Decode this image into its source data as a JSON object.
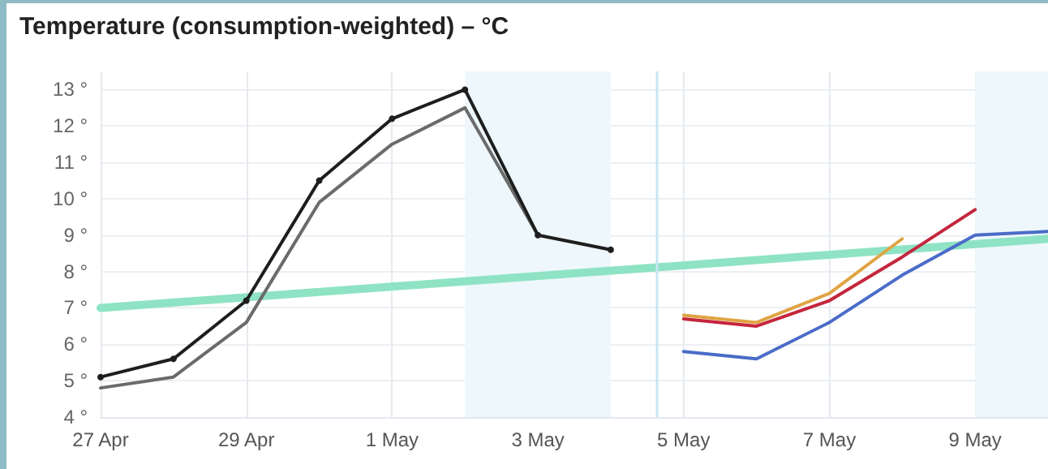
{
  "chart_data": {
    "type": "line",
    "title": "Temperature (consumption-weighted) – °C",
    "xlim": [
      "--04-27",
      "--05-10"
    ],
    "xticks": [
      {
        "value": "--04-27",
        "label": "27 Apr"
      },
      {
        "value": "--04-29",
        "label": "29 Apr"
      },
      {
        "value": "--05-01",
        "label": "1 May"
      },
      {
        "value": "--05-03",
        "label": "3 May"
      },
      {
        "value": "--05-05",
        "label": "5 May"
      },
      {
        "value": "--05-07",
        "label": "7 May"
      },
      {
        "value": "--05-09",
        "label": "9 May"
      }
    ],
    "ylim": [
      4,
      13.5
    ],
    "yticks": [
      {
        "value": 4,
        "label": "4 °"
      },
      {
        "value": 5,
        "label": "5 °"
      },
      {
        "value": 6,
        "label": "6 °"
      },
      {
        "value": 7,
        "label": "7 °"
      },
      {
        "value": 8,
        "label": "8 °"
      },
      {
        "value": 9,
        "label": "9 °"
      },
      {
        "value": 10,
        "label": "10 °"
      },
      {
        "value": 11,
        "label": "11 °"
      },
      {
        "value": 12,
        "label": "12 °"
      },
      {
        "value": 13,
        "label": "13 °"
      }
    ],
    "grid": true,
    "bands": [
      {
        "axis": "x",
        "from": "--05-02",
        "to": "--05-04",
        "color": "#eef7fc"
      },
      {
        "axis": "x",
        "from": "--05-09",
        "to": "--05-10",
        "color": "#eef7fc"
      }
    ],
    "ref_lines": [
      {
        "axis": "x",
        "value": "--05-04T15:00",
        "color": "#c8e6f5"
      }
    ],
    "series": [
      {
        "color": "#8ee3c4",
        "x": [
          "--04-27",
          "--05-10"
        ],
        "values": [
          7.0,
          8.9
        ],
        "marker": "none"
      },
      {
        "color": "#6b6b6b",
        "x": [
          "--04-27",
          "--04-28",
          "--04-29",
          "--04-30",
          "--05-01",
          "--05-02",
          "--05-03"
        ],
        "values": [
          4.8,
          5.1,
          6.6,
          9.9,
          11.5,
          12.5,
          9.0
        ],
        "marker": "none"
      },
      {
        "color": "#1e1e1e",
        "x": [
          "--04-27",
          "--04-28",
          "--04-29",
          "--04-30",
          "--05-01",
          "--05-02",
          "--05-03",
          "--05-04"
        ],
        "values": [
          5.1,
          5.6,
          7.2,
          10.5,
          12.2,
          13.0,
          9.0,
          8.6
        ],
        "marker": "circle"
      },
      {
        "color": "#e0a444",
        "x": [
          "--05-05",
          "--05-06",
          "--05-07",
          "--05-08"
        ],
        "values": [
          6.8,
          6.6,
          7.4,
          8.9
        ],
        "marker": "none"
      },
      {
        "color": "#c4263c",
        "x": [
          "--05-05",
          "--05-06",
          "--05-07",
          "--05-08",
          "--05-09"
        ],
        "values": [
          6.7,
          6.5,
          7.2,
          8.4,
          9.7
        ],
        "marker": "none"
      },
      {
        "color": "#4a6cc8",
        "x": [
          "--05-05",
          "--05-06",
          "--05-07",
          "--05-08",
          "--05-09",
          "--05-10"
        ],
        "values": [
          5.8,
          5.6,
          6.6,
          7.9,
          9.0,
          9.1
        ],
        "marker": "none"
      }
    ]
  }
}
